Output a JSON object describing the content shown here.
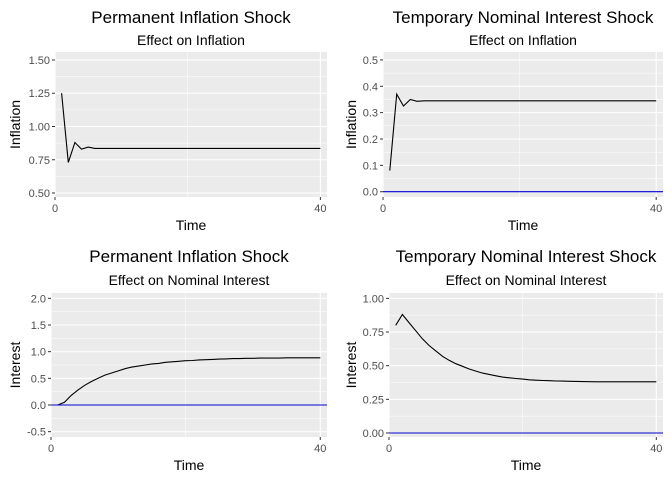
{
  "chart_data": [
    {
      "type": "line",
      "title": "Permanent Inflation Shock",
      "subtitle": "Effect on Inflation",
      "xlabel": "Time",
      "ylabel": "Inflation",
      "xlim": [
        0,
        41
      ],
      "ylim": [
        0.47,
        1.56
      ],
      "xticks": [
        0,
        40
      ],
      "xtick_labels": [
        "0",
        "40"
      ],
      "yticks": [
        0.5,
        0.75,
        1.0,
        1.25,
        1.5
      ],
      "ytick_labels": [
        "0.50",
        "0.75",
        "1.00",
        "1.25",
        "1.50"
      ],
      "grid": true,
      "series": [
        {
          "color": "#000000",
          "x": [
            1,
            2,
            3,
            4,
            5,
            6,
            7,
            8,
            9,
            10,
            11,
            12,
            13,
            14,
            15,
            16,
            17,
            18,
            19,
            20,
            21,
            22,
            23,
            24,
            25,
            26,
            27,
            28,
            29,
            30,
            31,
            32,
            33,
            34,
            35,
            36,
            37,
            38,
            39,
            40
          ],
          "y": [
            1.25,
            0.73,
            0.88,
            0.83,
            0.845,
            0.835,
            0.835,
            0.835,
            0.835,
            0.835,
            0.835,
            0.835,
            0.835,
            0.835,
            0.835,
            0.835,
            0.835,
            0.835,
            0.835,
            0.835,
            0.835,
            0.835,
            0.835,
            0.835,
            0.835,
            0.835,
            0.835,
            0.835,
            0.835,
            0.835,
            0.835,
            0.835,
            0.835,
            0.835,
            0.835,
            0.835,
            0.835,
            0.835,
            0.835,
            0.835
          ]
        }
      ]
    },
    {
      "type": "line",
      "title": "Temporary Nominal Interest Shock",
      "subtitle": "Effect on Inflation",
      "xlabel": "Time",
      "ylabel": "Inflation",
      "xlim": [
        0,
        41
      ],
      "ylim": [
        -0.02,
        0.53
      ],
      "xticks": [
        0,
        40
      ],
      "xtick_labels": [
        "0",
        "40"
      ],
      "yticks": [
        0.0,
        0.1,
        0.2,
        0.3,
        0.4,
        0.5
      ],
      "ytick_labels": [
        "0.0",
        "0.1",
        "0.2",
        "0.3",
        "0.4",
        "0.5"
      ],
      "grid": true,
      "series": [
        {
          "color": "#000000",
          "x": [
            1,
            2,
            3,
            4,
            5,
            6,
            7,
            8,
            9,
            10,
            11,
            12,
            13,
            14,
            15,
            16,
            17,
            18,
            19,
            20,
            21,
            22,
            23,
            24,
            25,
            26,
            27,
            28,
            29,
            30,
            31,
            32,
            33,
            34,
            35,
            36,
            37,
            38,
            39,
            40
          ],
          "y": [
            0.08,
            0.37,
            0.325,
            0.35,
            0.343,
            0.345,
            0.345,
            0.345,
            0.345,
            0.345,
            0.345,
            0.345,
            0.345,
            0.345,
            0.345,
            0.345,
            0.345,
            0.345,
            0.345,
            0.345,
            0.345,
            0.345,
            0.345,
            0.345,
            0.345,
            0.345,
            0.345,
            0.345,
            0.345,
            0.345,
            0.345,
            0.345,
            0.345,
            0.345,
            0.345,
            0.345,
            0.345,
            0.345,
            0.345,
            0.345
          ]
        },
        {
          "color": "#0000cd",
          "x": [
            0,
            41
          ],
          "y": [
            0,
            0
          ]
        }
      ]
    },
    {
      "type": "line",
      "title": "Permanent Inflation Shock",
      "subtitle": "Effect on Nominal Interest",
      "xlabel": "Time",
      "ylabel": "Interest",
      "xlim": [
        0,
        41
      ],
      "ylim": [
        -0.6,
        2.1
      ],
      "xticks": [
        0,
        40
      ],
      "xtick_labels": [
        "0",
        "40"
      ],
      "yticks": [
        -0.5,
        0.0,
        0.5,
        1.0,
        1.5,
        2.0
      ],
      "ytick_labels": [
        "-0.5",
        "0.0",
        "0.5",
        "1.0",
        "1.5",
        "2.0"
      ],
      "grid": true,
      "series": [
        {
          "color": "#000000",
          "x": [
            0,
            1,
            2,
            3,
            4,
            5,
            6,
            7,
            8,
            9,
            10,
            11,
            12,
            13,
            14,
            15,
            16,
            17,
            18,
            19,
            20,
            21,
            22,
            23,
            24,
            25,
            26,
            27,
            28,
            29,
            30,
            31,
            32,
            33,
            34,
            35,
            36,
            37,
            38,
            39,
            40
          ],
          "y": [
            0.0,
            0.0,
            0.05,
            0.18,
            0.28,
            0.37,
            0.44,
            0.5,
            0.56,
            0.6,
            0.64,
            0.68,
            0.71,
            0.73,
            0.75,
            0.77,
            0.78,
            0.8,
            0.81,
            0.82,
            0.83,
            0.835,
            0.845,
            0.85,
            0.855,
            0.86,
            0.865,
            0.87,
            0.87,
            0.875,
            0.875,
            0.88,
            0.88,
            0.88,
            0.88,
            0.885,
            0.885,
            0.885,
            0.885,
            0.885,
            0.885
          ]
        },
        {
          "color": "#0000cd",
          "x": [
            0,
            41
          ],
          "y": [
            0,
            0
          ]
        }
      ]
    },
    {
      "type": "line",
      "title": "Temporary Nominal Interest Shock",
      "subtitle": "Effect on Nominal Interest",
      "xlabel": "Time",
      "ylabel": "Interest",
      "xlim": [
        0,
        41
      ],
      "ylim": [
        -0.03,
        1.04
      ],
      "xticks": [
        0,
        40
      ],
      "xtick_labels": [
        "0",
        "40"
      ],
      "yticks": [
        0.0,
        0.25,
        0.5,
        0.75,
        1.0
      ],
      "ytick_labels": [
        "0.00",
        "0.25",
        "0.50",
        "0.75",
        "1.00"
      ],
      "grid": true,
      "series": [
        {
          "color": "#000000",
          "x": [
            1,
            2,
            3,
            4,
            5,
            6,
            7,
            8,
            9,
            10,
            11,
            12,
            13,
            14,
            15,
            16,
            17,
            18,
            19,
            20,
            21,
            22,
            23,
            24,
            25,
            26,
            27,
            28,
            29,
            30,
            31,
            32,
            33,
            34,
            35,
            36,
            37,
            38,
            39,
            40
          ],
          "y": [
            0.8,
            0.88,
            0.82,
            0.76,
            0.7,
            0.65,
            0.61,
            0.57,
            0.54,
            0.515,
            0.495,
            0.475,
            0.46,
            0.445,
            0.435,
            0.425,
            0.415,
            0.41,
            0.405,
            0.4,
            0.395,
            0.392,
            0.39,
            0.388,
            0.386,
            0.385,
            0.384,
            0.383,
            0.382,
            0.381,
            0.38,
            0.38,
            0.38,
            0.38,
            0.38,
            0.38,
            0.38,
            0.38,
            0.38,
            0.38
          ]
        },
        {
          "color": "#0000cd",
          "x": [
            0,
            41
          ],
          "y": [
            0,
            0
          ]
        }
      ]
    }
  ]
}
